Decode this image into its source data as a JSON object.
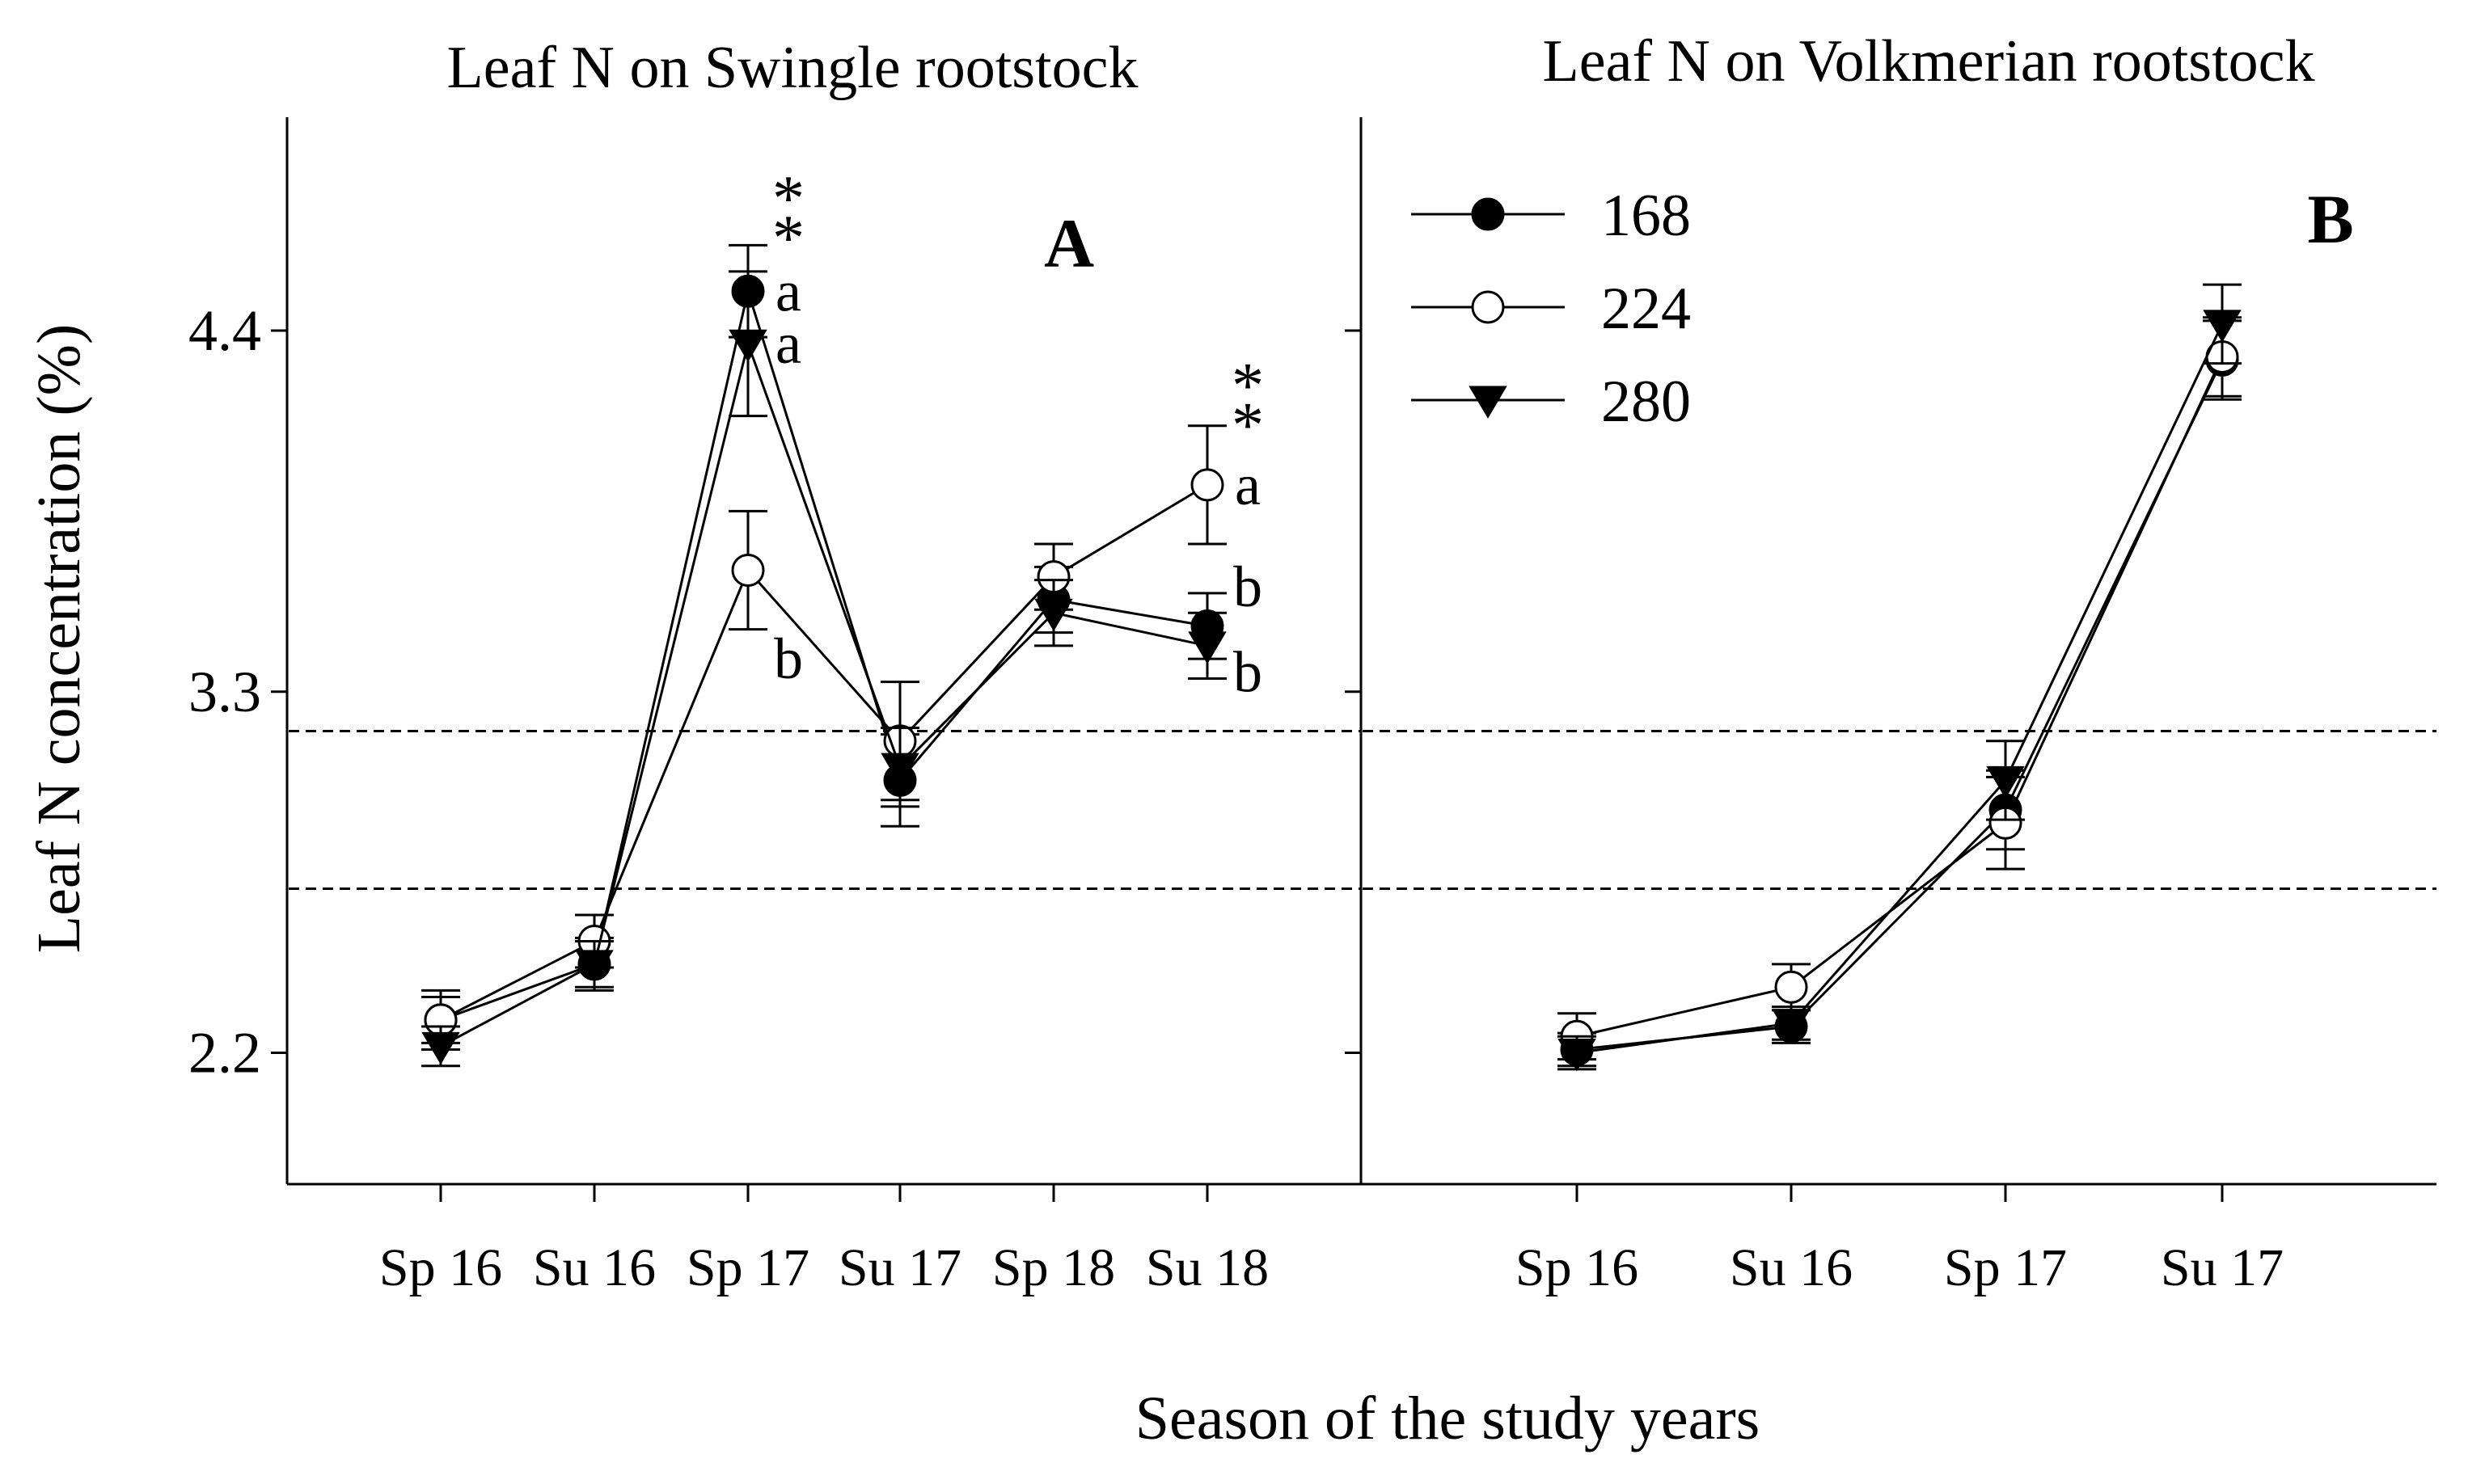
{
  "chart_data": [
    {
      "type": "line",
      "panel_label": "A",
      "title": "Leaf N on Swingle rootstock",
      "xlabel": "Season of the study years",
      "ylabel": "Leaf N concentration (%)",
      "categories": [
        "Sp 16",
        "Su 16",
        "Sp 17",
        "Su 17",
        "Sp 18",
        "Su 18"
      ],
      "ylim": [
        1.8,
        5.05
      ],
      "yticks": [
        2.2,
        3.3,
        4.4
      ],
      "ytick_labels": [
        "2.2",
        "3.3",
        "4.4"
      ],
      "reference_lines": [
        3.18,
        2.7
      ],
      "series": [
        {
          "name": "168",
          "marker": "filled-circle",
          "values": [
            2.3,
            2.47,
            4.52,
            3.03,
            3.58,
            3.5
          ],
          "errors": [
            0.07,
            0.08,
            0.14,
            0.14,
            0.1,
            0.1
          ]
        },
        {
          "name": "224",
          "marker": "open-circle",
          "values": [
            2.3,
            2.54,
            3.67,
            3.15,
            3.65,
            3.93
          ],
          "errors": [
            0.09,
            0.08,
            0.18,
            0.18,
            0.1,
            0.18
          ]
        },
        {
          "name": "280",
          "marker": "filled-triangle",
          "values": [
            2.22,
            2.47,
            4.36,
            3.07,
            3.54,
            3.44
          ],
          "errors": [
            0.06,
            0.07,
            0.22,
            0.12,
            0.1,
            0.1
          ]
        }
      ],
      "annotations": [
        {
          "category": "Sp 17",
          "value": 4.52,
          "text": "a"
        },
        {
          "category": "Sp 17",
          "value": 4.36,
          "text": "a"
        },
        {
          "category": "Sp 17",
          "value": 3.4,
          "text": "b"
        },
        {
          "category": "Sp 17",
          "value": 4.86,
          "text": "*"
        },
        {
          "category": "Sp 17",
          "value": 4.74,
          "text": "*"
        },
        {
          "category": "Su 18",
          "value": 3.93,
          "text": "a"
        },
        {
          "category": "Su 18",
          "value": 3.62,
          "text": "b"
        },
        {
          "category": "Su 18",
          "value": 3.36,
          "text": "b"
        },
        {
          "category": "Su 18",
          "value": 4.29,
          "text": "*"
        },
        {
          "category": "Su 18",
          "value": 4.17,
          "text": "*"
        }
      ]
    },
    {
      "type": "line",
      "panel_label": "B",
      "title": "Leaf N on Volkmerian rootstock",
      "xlabel": "Season of the study years",
      "categories": [
        "Sp 16",
        "Su 16",
        "Sp 17",
        "Su 17"
      ],
      "ylim": [
        1.8,
        5.05
      ],
      "yticks": [
        2.2,
        3.3,
        4.4
      ],
      "ytick_labels": [],
      "reference_lines": [
        3.18,
        2.7
      ],
      "legend": {
        "position": "top-left",
        "entries": [
          "168",
          "224",
          "280"
        ]
      },
      "series": [
        {
          "name": "168",
          "marker": "filled-circle",
          "values": [
            2.21,
            2.28,
            2.94,
            4.31
          ],
          "errors": [
            0.05,
            0.05,
            0.12,
            0.12
          ]
        },
        {
          "name": "224",
          "marker": "open-circle",
          "values": [
            2.25,
            2.4,
            2.9,
            4.32
          ],
          "errors": [
            0.07,
            0.07,
            0.14,
            0.12
          ]
        },
        {
          "name": "280",
          "marker": "filled-triangle",
          "values": [
            2.2,
            2.29,
            3.03,
            4.42
          ],
          "errors": [
            0.05,
            0.05,
            0.12,
            0.12
          ]
        }
      ]
    }
  ]
}
